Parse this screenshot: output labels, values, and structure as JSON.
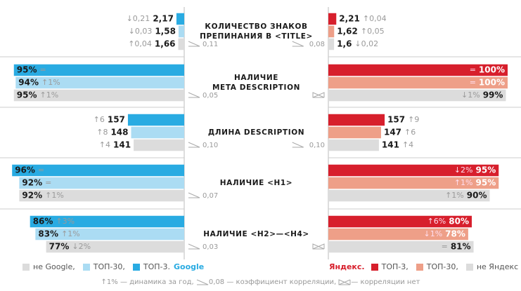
{
  "chart_data": {
    "type": "bar",
    "colors": {
      "google": [
        "#29abe2",
        "#abdcf3",
        "#dcdcdc"
      ],
      "yandex": [
        "#d71f2c",
        "#ee9f88",
        "#dcdcdc"
      ]
    },
    "sections": [
      {
        "title": [
          "КОЛИЧЕСТВО ЗНАКОВ",
          "ПРЕПИНАНИЯ В <TITLE>"
        ],
        "xlim": [
          0,
          50
        ],
        "google": {
          "values": [
            2.17,
            1.58,
            1.66
          ],
          "value_labels": [
            "2,17",
            "1,58",
            "1,66"
          ],
          "changes": [
            "↓0,21",
            "↓0,03",
            "↑0,04"
          ],
          "correlation": "0,11"
        },
        "yandex": {
          "values": [
            2.21,
            1.62,
            1.6
          ],
          "value_labels": [
            "2,21",
            "1,62",
            "1,6"
          ],
          "changes": [
            "↑0,04",
            "↑0,05",
            "↓0,02"
          ],
          "correlation": "0,08"
        }
      },
      {
        "title": [
          "НАЛИЧИЕ",
          "META DESCRIPTION"
        ],
        "xlim": [
          0,
          100
        ],
        "google": {
          "values": [
            95,
            94,
            95
          ],
          "value_labels": [
            "95%",
            "94%",
            "95%"
          ],
          "changes": [
            "=",
            "↑1%",
            "↑1%"
          ],
          "correlation": "0,05"
        },
        "yandex": {
          "values": [
            100,
            100,
            99
          ],
          "value_labels": [
            "100%",
            "100%",
            "99%"
          ],
          "changes": [
            "=",
            "=",
            "↓1%"
          ],
          "correlation": null
        }
      },
      {
        "title": [
          "ДЛИНА DESCRIPTION"
        ],
        "xlim": [
          0,
          500
        ],
        "google": {
          "values": [
            157,
            148,
            141
          ],
          "changes": [
            "↑6",
            "↑8",
            "↑4"
          ],
          "correlation": "0,10"
        },
        "yandex": {
          "values": [
            157,
            147,
            141
          ],
          "changes": [
            "↑9",
            "↑6",
            "↑4"
          ],
          "correlation": "0,10"
        }
      },
      {
        "title": [
          "НАЛИЧИЕ <H1>"
        ],
        "xlim": [
          0,
          100
        ],
        "google": {
          "values": [
            96,
            92,
            92
          ],
          "value_labels": [
            "96%",
            "92%",
            "92%"
          ],
          "changes": [
            "=",
            "=",
            "↑1%"
          ],
          "correlation": "0,07"
        },
        "yandex": {
          "values": [
            95,
            95,
            90
          ],
          "value_labels": [
            "95%",
            "95%",
            "90%"
          ],
          "changes": [
            "↓2%",
            "↑1%",
            "↑1%"
          ]
        }
      },
      {
        "title": [
          "НАЛИЧИЕ <H2>—<H4>"
        ],
        "xlim": [
          0,
          100
        ],
        "google": {
          "values": [
            86,
            83,
            77
          ],
          "value_labels": [
            "86%",
            "83%",
            "77%"
          ],
          "changes": [
            "↑3%",
            "↑1%",
            "↓2%"
          ],
          "correlation": "0,03"
        },
        "yandex": {
          "values": [
            80,
            78,
            81
          ],
          "value_labels": [
            "80%",
            "78%",
            "81%"
          ],
          "changes": [
            "↑6%",
            "↓1%",
            "="
          ],
          "correlation": null
        }
      }
    ],
    "legend": {
      "google": [
        "не Google,",
        "ТОП-30,",
        "ТОП-3.",
        "Google"
      ],
      "yandex": [
        "Яндекс.",
        "ТОП-3,",
        "ТОП-30,",
        "не Яндекс"
      ]
    },
    "footnote": [
      "↑1% — динамика за год,",
      "0,08 — коэффициент корреляции,",
      "— корреляции нет"
    ]
  }
}
